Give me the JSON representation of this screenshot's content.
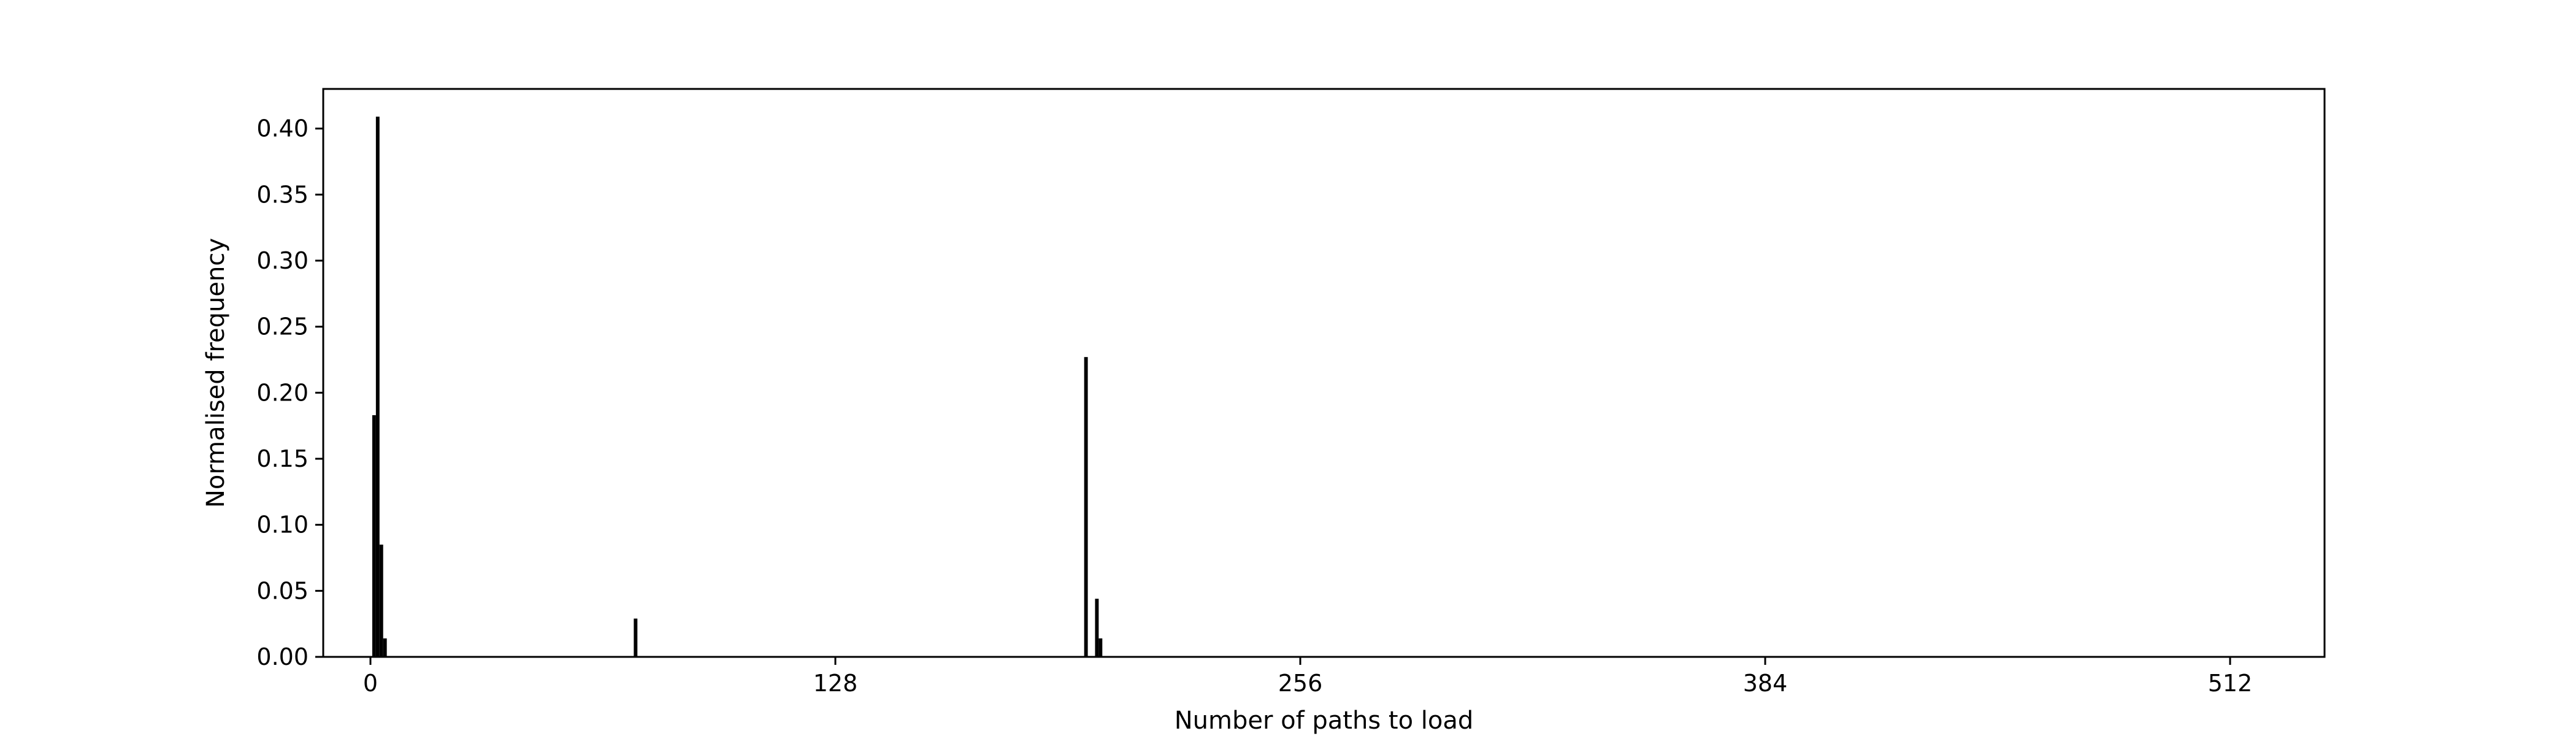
{
  "chart_data": {
    "type": "bar",
    "title": "",
    "xlabel": "Number of paths to load",
    "ylabel": "Normalised frequency",
    "xlim": [
      -13,
      538
    ],
    "ylim": [
      0,
      0.43
    ],
    "xticks": [
      0,
      128,
      256,
      384,
      512
    ],
    "xtick_labels": [
      "0",
      "128",
      "256",
      "384",
      "512"
    ],
    "yticks": [
      0.0,
      0.05,
      0.1,
      0.15,
      0.2,
      0.25,
      0.3,
      0.35,
      0.4
    ],
    "ytick_labels": [
      "0.00",
      "0.05",
      "0.10",
      "0.15",
      "0.20",
      "0.25",
      "0.30",
      "0.35",
      "0.40"
    ],
    "grid": false,
    "bar_width": 1,
    "bar_color": "#000000",
    "x": [
      1,
      2,
      3,
      4,
      73,
      197,
      200,
      201
    ],
    "values": [
      0.183,
      0.409,
      0.085,
      0.014,
      0.029,
      0.227,
      0.044,
      0.014
    ]
  }
}
